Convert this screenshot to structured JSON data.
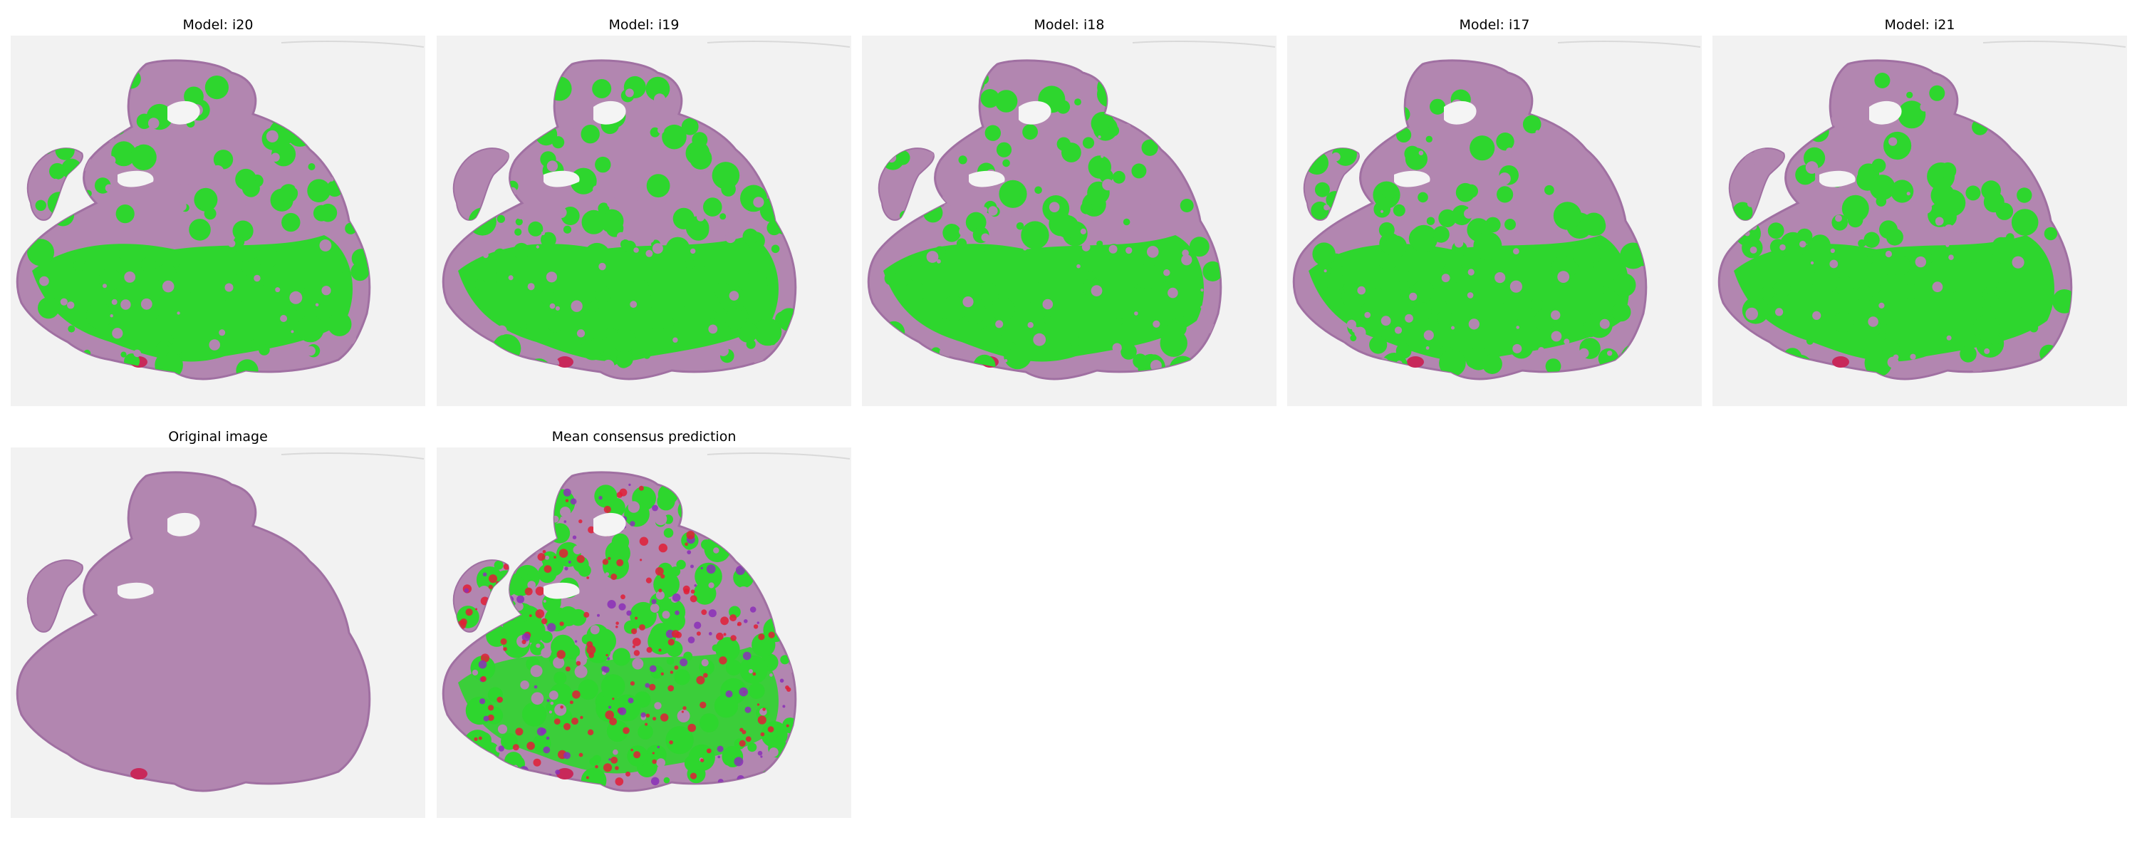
{
  "panels": [
    {
      "id": "i20",
      "title": "Model: i20",
      "kind": "model-prediction"
    },
    {
      "id": "i19",
      "title": "Model: i19",
      "kind": "model-prediction"
    },
    {
      "id": "i18",
      "title": "Model: i18",
      "kind": "model-prediction"
    },
    {
      "id": "i17",
      "title": "Model: i17",
      "kind": "model-prediction"
    },
    {
      "id": "i21",
      "title": "Model: i21",
      "kind": "model-prediction"
    },
    {
      "id": "original",
      "title": "Original image",
      "kind": "original"
    },
    {
      "id": "consensus",
      "title": "Mean consensus prediction",
      "kind": "consensus"
    }
  ],
  "colors": {
    "background": "#f2f2f2",
    "tissue": "#b286b0",
    "tissue_edge": "#a070a2",
    "prediction": "#2ed62e",
    "consensus_red": "#e01f36",
    "consensus_purple": "#8a2fb8",
    "blood": "#c8285a",
    "hole": "#f4f4f4"
  }
}
